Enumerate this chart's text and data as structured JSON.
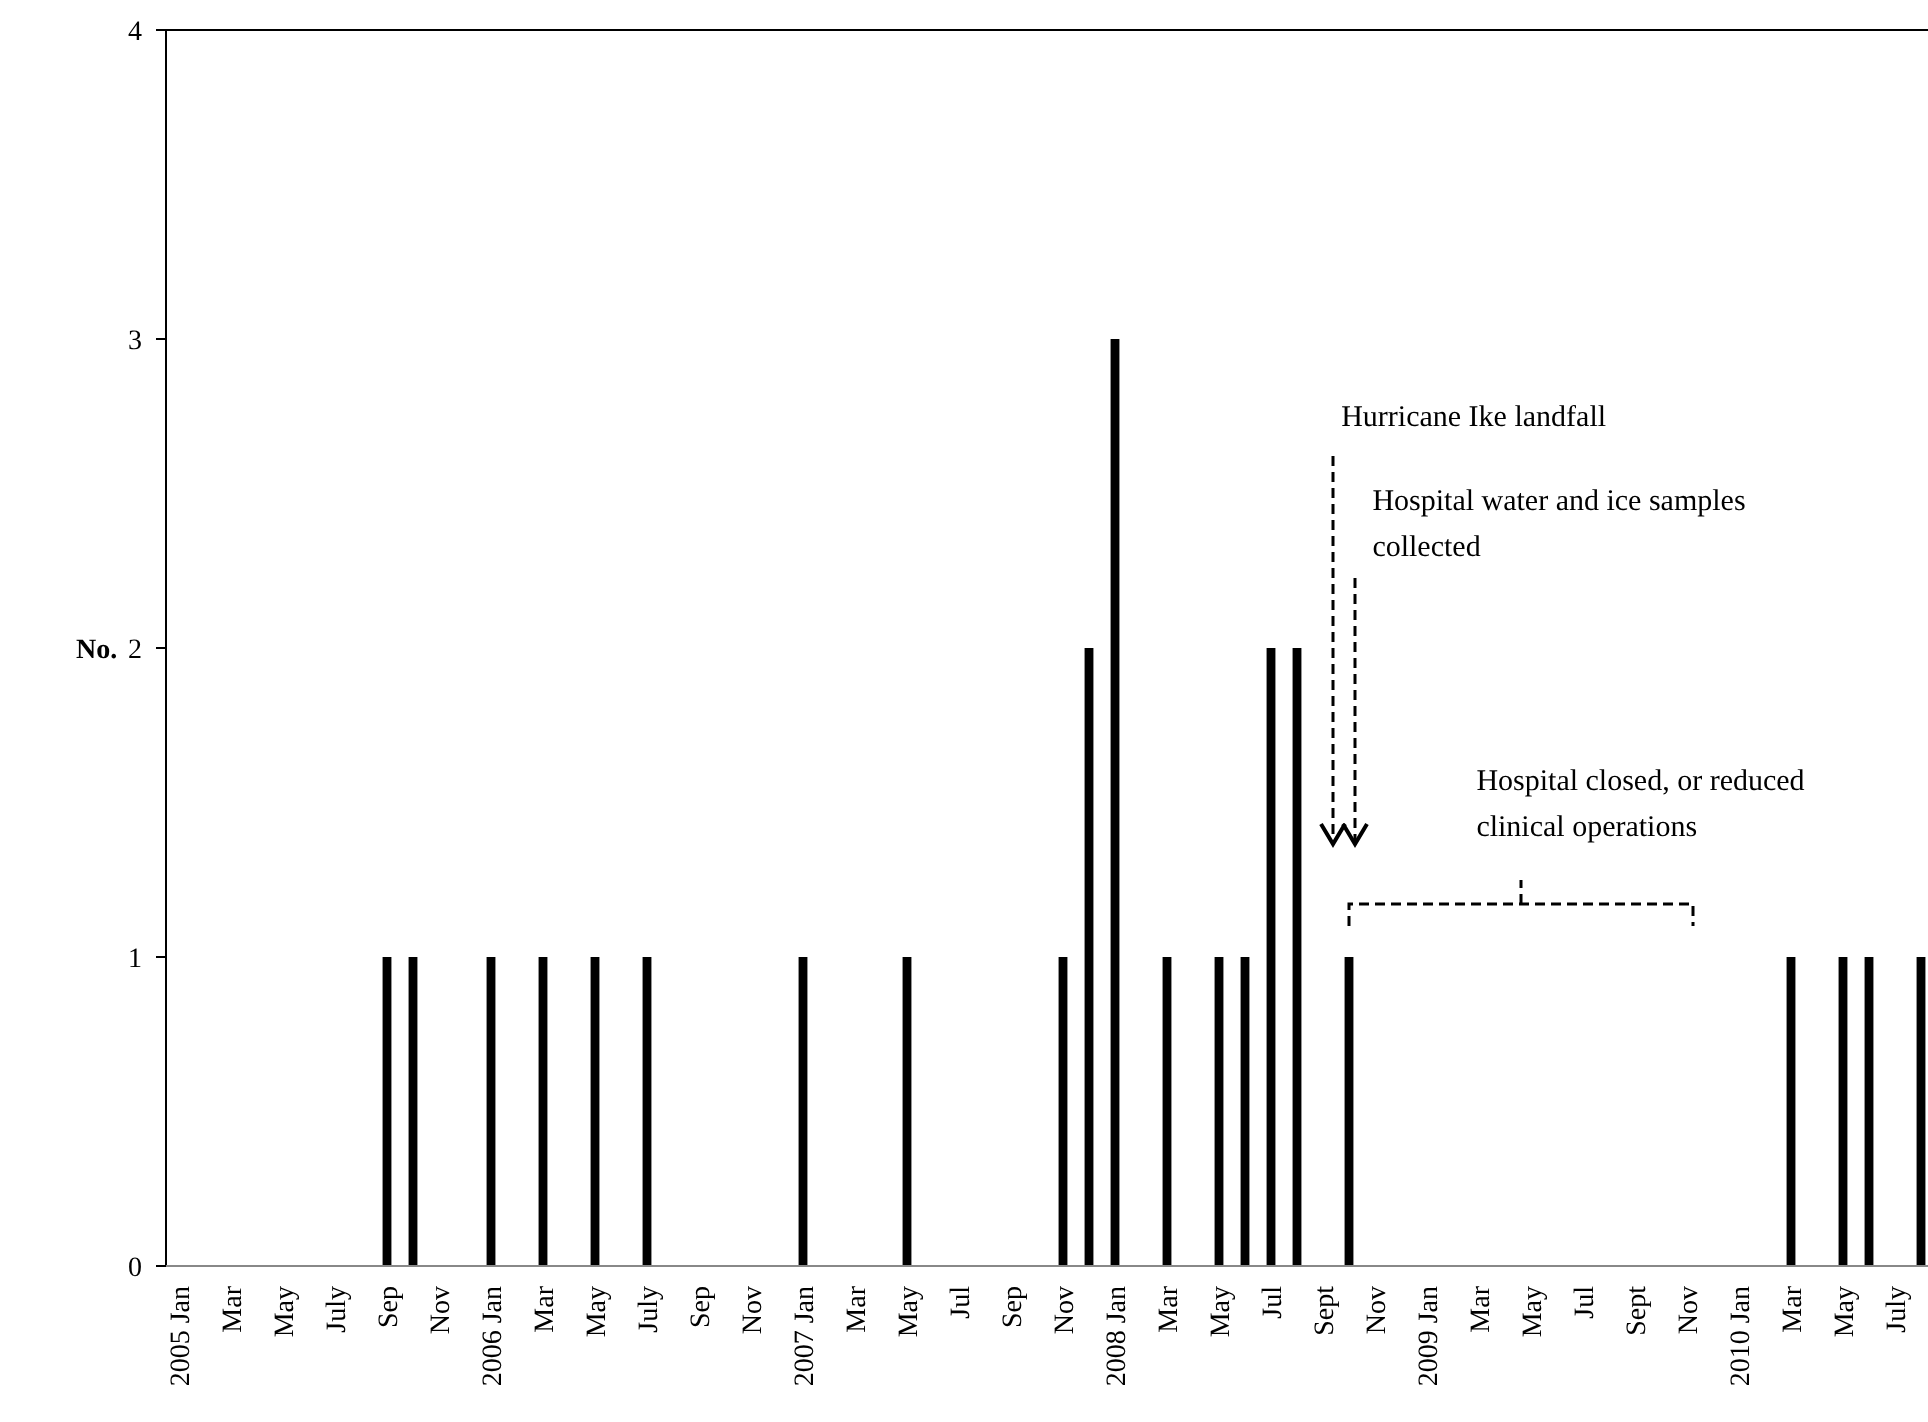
{
  "chart_data": {
    "type": "bar",
    "ylabel": "No.",
    "categories": [
      "2005 Jan",
      null,
      "Mar",
      null,
      "May",
      null,
      "July",
      null,
      "Sep",
      null,
      "Nov",
      null,
      "2006 Jan",
      null,
      "Mar",
      null,
      "May",
      null,
      "July",
      null,
      "Sep",
      null,
      "Nov",
      null,
      "2007 Jan",
      null,
      "Mar",
      null,
      "May",
      null,
      "Jul",
      null,
      "Sep",
      null,
      "Nov",
      null,
      "2008 Jan",
      null,
      "Mar",
      null,
      "May",
      null,
      "Jul",
      null,
      "Sept",
      null,
      "Nov",
      null,
      "2009 Jan",
      null,
      "Mar",
      null,
      "May",
      null,
      "Jul",
      null,
      "Sept",
      null,
      "Nov",
      null,
      "2010 Jan",
      null,
      "Mar",
      null,
      "May",
      null,
      "July",
      null
    ],
    "values": [
      0,
      0,
      0,
      0,
      0,
      0,
      0,
      0,
      1,
      1,
      0,
      0,
      1,
      0,
      1,
      0,
      1,
      0,
      1,
      0,
      0,
      0,
      0,
      0,
      1,
      0,
      0,
      0,
      1,
      0,
      0,
      0,
      0,
      0,
      1,
      2,
      3,
      0,
      1,
      0,
      1,
      1,
      2,
      2,
      0,
      1,
      0,
      0,
      0,
      0,
      0,
      0,
      0,
      0,
      0,
      0,
      0,
      0,
      0,
      0,
      0,
      0,
      1,
      0,
      1,
      1,
      0,
      1
    ],
    "color": "#000000",
    "ylim": [
      0,
      4
    ],
    "yticks": [
      0,
      1,
      2,
      3,
      4
    ],
    "grid": false,
    "annotations": [
      "Hurricane Ike landfall",
      "Hospital water and ice samples collected",
      "Hospital closed, or reduced clinical operations"
    ]
  }
}
